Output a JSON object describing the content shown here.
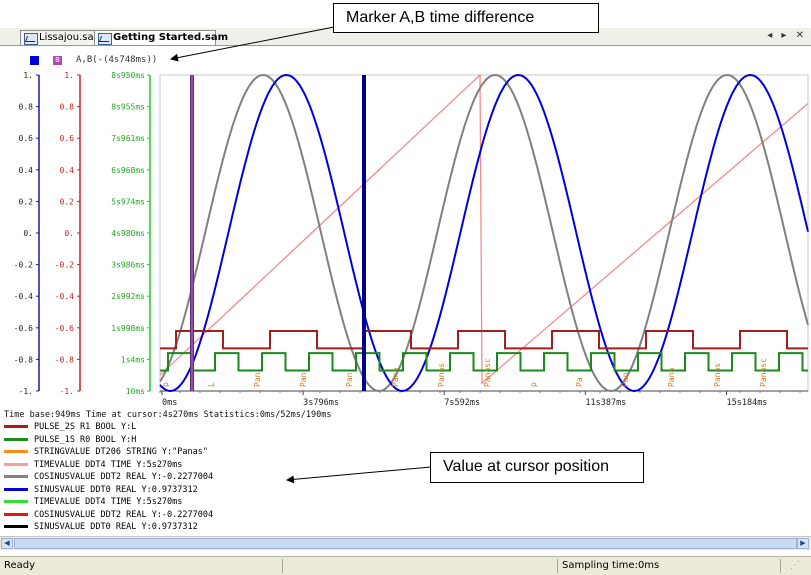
{
  "tabs": [
    {
      "label": "Lissajou.sam",
      "active": false
    },
    {
      "label": "Getting Started.sam",
      "active": true
    }
  ],
  "tab_nav": "◂ ▸ ✕",
  "marker": {
    "a_swatch_color": "#0000dd",
    "b_swatch_label": "B",
    "b_swatch_color": "#b04ab0",
    "label": "A,B(-(4s748ms))"
  },
  "axes": {
    "black_ticks": [
      "1.",
      "0.8",
      "0.6",
      "0.4",
      "0.2",
      "0.",
      "-0.2",
      "-0.4",
      "-0.6",
      "-0.8",
      "-1."
    ],
    "red_ticks": [
      "1.",
      "0.8",
      "0.6",
      "0.4",
      "0.2",
      "0.",
      "-0.2",
      "-0.4",
      "-0.6",
      "-0.8",
      "-1."
    ],
    "green_ticks": [
      "8s950ms",
      "8s955ms",
      "7s961ms",
      "6s968ms",
      "5s974ms",
      "4s980ms",
      "3s986ms",
      "2s992ms",
      "1s998ms",
      "1s4ms",
      "10ms"
    ],
    "x_ticks": [
      "0ms",
      "3s796ms",
      "7s592ms",
      "11s387ms",
      "15s184ms"
    ]
  },
  "colors": {
    "sine": "#0000dd",
    "cosine": "#808080",
    "timevalue": "#f28c8c",
    "pulse2": "#a02020",
    "pulse1": "#1a8a1a",
    "cursor_a": "#5a2e7a",
    "cursor_b": "#00008b",
    "string_label": "#e07820"
  },
  "string_labels": [
    "p",
    "L",
    "Pan",
    "Pan",
    "Pan",
    "Pana",
    "Panas",
    "Panasc",
    "p",
    "Pa",
    "Pan",
    "Pana",
    "Panas",
    "Panasc"
  ],
  "info": {
    "timebase": "Time base:949ms  Time at cursor:4s270ms Statistics:0ms/52ms/190ms",
    "traces": [
      {
        "color": "#a02020",
        "text": "PULSE_2S     R1  BOOL  Y:L"
      },
      {
        "color": "#1a8a1a",
        "text": "PULSE_1S     R0  BOOL  Y:H"
      },
      {
        "color": "#ff8c1a",
        "text": "STRINGVALUE   DT206 STRING  Y:\"Panas\""
      },
      {
        "color": "#f4a0a0",
        "text": "TIMEVALUE   DDT4  TIME  Y:5s270ms"
      },
      {
        "color": "#808080",
        "text": "COSINUSVALUE    DDT2  REAL  Y:-0.2277004"
      },
      {
        "color": "#0000dd",
        "text": "SINUSVALUE    DDT0  REAL  Y:0.9737312"
      },
      {
        "color": "#33dd33",
        "text": "TIMEVALUE   DDT4  TIME  Y:5s270ms"
      },
      {
        "color": "#ee1111",
        "text": "COSINUSVALUE    DDT2  REAL  Y:-0.2277004"
      },
      {
        "color": "#000000",
        "text": "SINUSVALUE    DDT0  REAL  Y:0.9737312"
      }
    ]
  },
  "callouts": {
    "marker": "Marker A,B  time difference",
    "cursor": "Value at cursor position"
  },
  "status": {
    "ready": "Ready",
    "sampling": "Sampling time:0ms"
  }
}
